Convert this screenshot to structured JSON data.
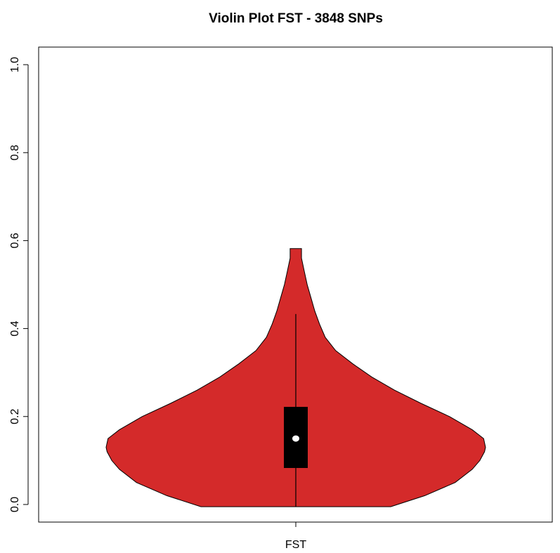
{
  "chart_data": {
    "type": "violin",
    "title": "Violin Plot FST - 3848 SNPs",
    "xlabel": "",
    "ylabel": "",
    "categories": [
      "FST"
    ],
    "ylim": [
      -0.04,
      1.04
    ],
    "y_ticks": [
      0.0,
      0.2,
      0.4,
      0.6,
      0.8,
      1.0
    ],
    "y_tick_labels": [
      "0.0",
      "0.2",
      "0.4",
      "0.6",
      "0.8",
      "1.0"
    ],
    "fill_color": "#d42a2a",
    "box_color": "#000000",
    "median_color": "#ffffff",
    "grid": false,
    "violin": {
      "min": -0.005,
      "max": 0.582,
      "median": 0.15,
      "q1": 0.083,
      "q3": 0.222,
      "whisker_low": -0.005,
      "whisker_high": 0.433,
      "density_profile": [
        [
          -0.005,
          0.5
        ],
        [
          0.02,
          0.68
        ],
        [
          0.05,
          0.84
        ],
        [
          0.08,
          0.93
        ],
        [
          0.1,
          0.97
        ],
        [
          0.12,
          0.995
        ],
        [
          0.13,
          1.0
        ],
        [
          0.15,
          0.99
        ],
        [
          0.17,
          0.93
        ],
        [
          0.2,
          0.81
        ],
        [
          0.23,
          0.66
        ],
        [
          0.26,
          0.52
        ],
        [
          0.29,
          0.4
        ],
        [
          0.32,
          0.3
        ],
        [
          0.35,
          0.21
        ],
        [
          0.38,
          0.155
        ],
        [
          0.41,
          0.125
        ],
        [
          0.44,
          0.1
        ],
        [
          0.47,
          0.08
        ],
        [
          0.5,
          0.06
        ],
        [
          0.53,
          0.045
        ],
        [
          0.56,
          0.03
        ],
        [
          0.582,
          0.03
        ]
      ]
    }
  }
}
